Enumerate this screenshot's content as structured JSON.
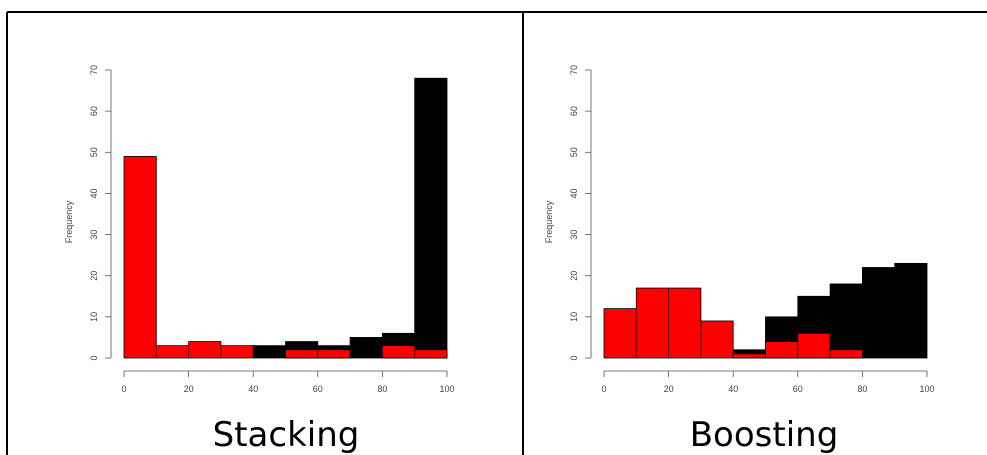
{
  "captions": {
    "left": "Stacking",
    "right": "Boosting"
  },
  "colors": {
    "series_red": "#ff0000",
    "series_black": "#000000",
    "frame": "#000000"
  },
  "chart_data": [
    {
      "type": "bar",
      "title": "",
      "xlabel": "",
      "ylabel": "Frequency",
      "xlim": [
        0,
        100
      ],
      "ylim": [
        0,
        70
      ],
      "x_ticks": [
        "0",
        "20",
        "40",
        "60",
        "80",
        "100"
      ],
      "y_ticks": [
        "0",
        "10",
        "20",
        "30",
        "40",
        "50",
        "60",
        "70"
      ],
      "bin_edges": [
        0,
        10,
        20,
        30,
        40,
        50,
        60,
        70,
        80,
        90,
        100
      ],
      "series": [
        {
          "color": "#000000",
          "values": [
            0,
            0,
            0,
            0,
            3,
            4,
            3,
            5,
            6,
            68
          ]
        },
        {
          "color": "#ff0000",
          "values": [
            49,
            3,
            4,
            3,
            0,
            2,
            2,
            0,
            3,
            2
          ]
        }
      ]
    },
    {
      "type": "bar",
      "title": "",
      "xlabel": "",
      "ylabel": "Frequency",
      "xlim": [
        0,
        100
      ],
      "ylim": [
        0,
        70
      ],
      "x_ticks": [
        "0",
        "20",
        "40",
        "60",
        "80",
        "100"
      ],
      "y_ticks": [
        "0",
        "10",
        "20",
        "30",
        "40",
        "50",
        "60",
        "70"
      ],
      "bin_edges": [
        0,
        10,
        20,
        30,
        40,
        50,
        60,
        70,
        80,
        90,
        100
      ],
      "series": [
        {
          "color": "#000000",
          "values": [
            0,
            0,
            0,
            0,
            2,
            10,
            15,
            18,
            22,
            23
          ]
        },
        {
          "color": "#ff0000",
          "values": [
            12,
            17,
            17,
            9,
            1,
            4,
            6,
            2,
            0,
            0
          ]
        }
      ]
    }
  ]
}
